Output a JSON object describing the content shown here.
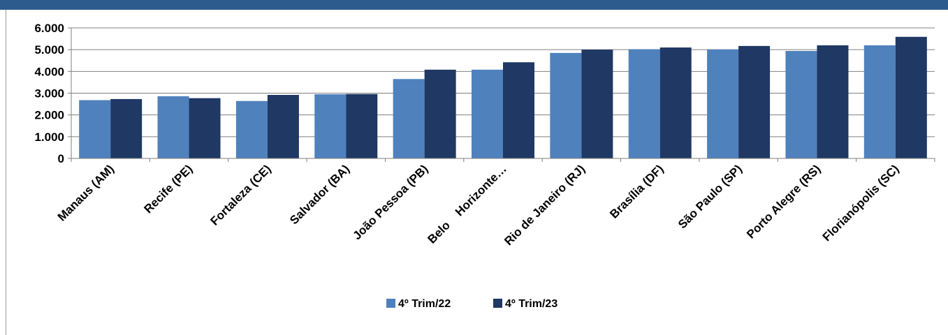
{
  "chart_data": {
    "type": "bar",
    "categories": [
      "Manaus (AM)",
      "Recife (PE)",
      "Fortaleza (CE)",
      "Salvador (BA)",
      "João Pessoa (PB)",
      "Belo    Horizonte…",
      "Rio de Janeiro (RJ)",
      "Brasília (DF)",
      "São Paulo (SP)",
      "Porto Alegre (RS)",
      "Florianópolis (SC)"
    ],
    "series": [
      {
        "name": "4º Trim/22",
        "color": "#4f81bd",
        "values": [
          2680,
          2860,
          2640,
          2950,
          3650,
          4080,
          4850,
          5020,
          5010,
          4940,
          5200
        ]
      },
      {
        "name": "4º Trim/23",
        "color": "#1f3864",
        "values": [
          2730,
          2770,
          2920,
          2960,
          4080,
          4420,
          5000,
          5100,
          5170,
          5200,
          5590
        ]
      }
    ],
    "yticks": [
      "0",
      "1.000",
      "2.000",
      "3.000",
      "4.000",
      "5.000",
      "6.000"
    ],
    "ylim": [
      0,
      6000
    ],
    "grid": true,
    "legend_position": "bottom-center",
    "title": "",
    "xlabel": "",
    "ylabel": ""
  },
  "colors": {
    "header_bar": "#2e5b8e",
    "gridline": "#7f7f7f"
  }
}
